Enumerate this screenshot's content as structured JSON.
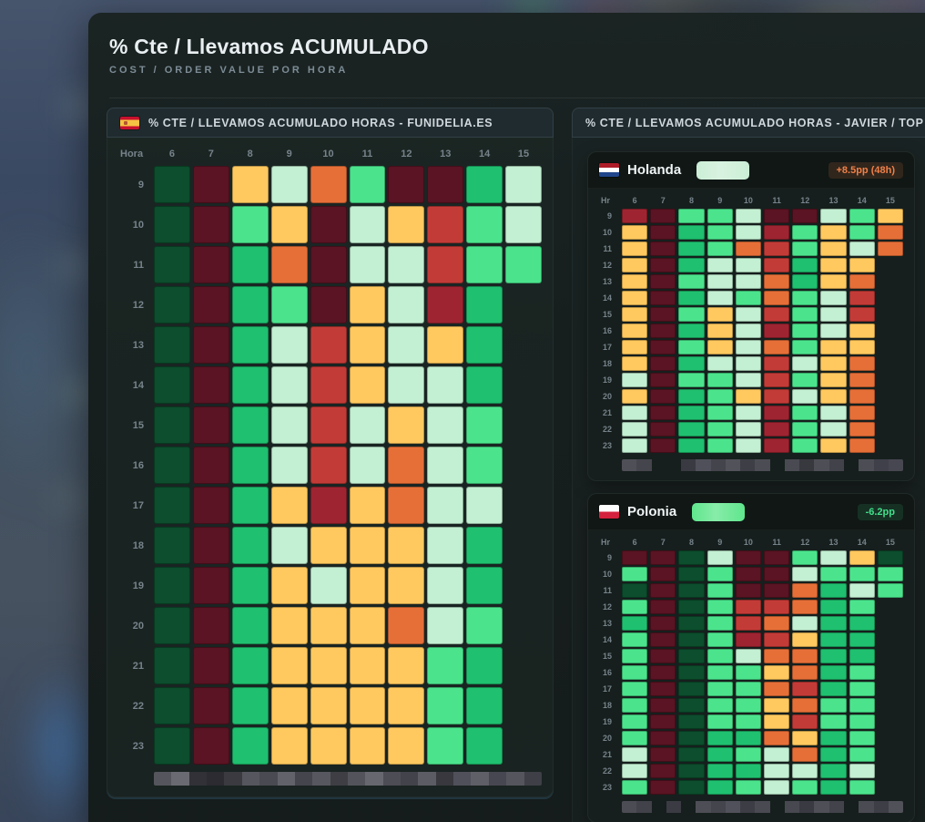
{
  "page": {
    "title": "% Cte / Llevamos ACUMULADO",
    "subtitle": "COST / ORDER VALUE POR HORA"
  },
  "palette": {
    "dg": "#0c4e2d",
    "mr": "#5a1423",
    "tg": "#1fc06f",
    "mg": "#4be48d",
    "pm": "#c3efd2",
    "am": "#ffc95f",
    "or": "#e66f38",
    "rd": "#c33b37",
    "cr": "#9e2431"
  },
  "palette_legend": {
    "dg": "dark-green (best)",
    "mr": "dark-maroon (worst)",
    "tg": "green",
    "mg": "light-green",
    "pm": "pale-mint",
    "am": "amber",
    "or": "orange",
    "rd": "red",
    "cr": "crimson"
  },
  "left_panel": {
    "title": "% CTE / LLEVAMOS ACUMULADO HORAS - FUNIDELIA.ES",
    "flag_icon": "spain-flag-icon"
  },
  "right_panel": {
    "title": "% CTE / LLEVAMOS ACUMULADO HORAS - JAVIER / TOP",
    "cards": [
      {
        "name": "Holanda",
        "flag_icon": "netherlands-flag-icon",
        "value_redacted": true,
        "pill_color": "#cbeed6",
        "badge": "+8.5pp (48h)",
        "badge_color": "#f08048",
        "badge_bg": "rgba(240,128,72,0.15)"
      },
      {
        "name": "Polonia",
        "flag_icon": "poland-flag-icon",
        "value_redacted": true,
        "pill_color": "#5fe68c",
        "badge": "-6.2pp",
        "badge_color": "#43df8b",
        "badge_bg": "rgba(67,223,139,0.13)"
      }
    ]
  },
  "chart_data": [
    {
      "type": "heatmap",
      "title": "% CTE / LLEVAMOS ACUMULADO HORAS - FUNIDELIA.ES",
      "corner": "Hora",
      "x": [
        "6",
        "7",
        "8",
        "9",
        "10",
        "11",
        "12",
        "13",
        "14",
        "15"
      ],
      "y": [
        "9",
        "10",
        "11",
        "12",
        "13",
        "14",
        "15",
        "16",
        "17",
        "18",
        "19",
        "20",
        "21",
        "22",
        "23"
      ],
      "values_note": "cells encode % cost/order value by color class only; no numeric labels shown",
      "cells": [
        [
          "dg",
          "mr",
          "am",
          "pm",
          "or",
          "mg",
          "mr",
          "mr",
          "tg",
          "pm"
        ],
        [
          "dg",
          "mr",
          "mg",
          "am",
          "mr",
          "pm",
          "am",
          "rd",
          "mg",
          "pm"
        ],
        [
          "dg",
          "mr",
          "tg",
          "or",
          "mr",
          "pm",
          "pm",
          "rd",
          "mg",
          "mg"
        ],
        [
          "dg",
          "mr",
          "tg",
          "mg",
          "mr",
          "am",
          "pm",
          "cr",
          "tg"
        ],
        [
          "dg",
          "mr",
          "tg",
          "pm",
          "rd",
          "am",
          "pm",
          "am",
          "tg"
        ],
        [
          "dg",
          "mr",
          "tg",
          "pm",
          "rd",
          "am",
          "pm",
          "pm",
          "tg"
        ],
        [
          "dg",
          "mr",
          "tg",
          "pm",
          "rd",
          "pm",
          "am",
          "pm",
          "mg"
        ],
        [
          "dg",
          "mr",
          "tg",
          "pm",
          "rd",
          "pm",
          "or",
          "pm",
          "mg"
        ],
        [
          "dg",
          "mr",
          "tg",
          "am",
          "cr",
          "am",
          "or",
          "pm",
          "pm"
        ],
        [
          "dg",
          "mr",
          "tg",
          "pm",
          "am",
          "am",
          "am",
          "pm",
          "tg"
        ],
        [
          "dg",
          "mr",
          "tg",
          "am",
          "pm",
          "am",
          "am",
          "pm",
          "tg"
        ],
        [
          "dg",
          "mr",
          "tg",
          "am",
          "am",
          "am",
          "or",
          "pm",
          "mg"
        ],
        [
          "dg",
          "mr",
          "tg",
          "am",
          "am",
          "am",
          "am",
          "mg",
          "tg"
        ],
        [
          "dg",
          "mr",
          "tg",
          "am",
          "am",
          "am",
          "am",
          "mg",
          "tg"
        ],
        [
          "dg",
          "mr",
          "tg",
          "am",
          "am",
          "am",
          "am",
          "mg",
          "tg"
        ]
      ],
      "redaction_bar": [
        "#55555d",
        "#6a6a72",
        "#313137",
        "#2b2b31",
        "#3a3a40",
        "#56565e",
        "#4a4a52",
        "#62626a",
        "#45454d",
        "#57575f",
        "#3e3e44",
        "#53535b",
        "#67676f",
        "#4d4d55",
        "#43434b",
        "#5c5c64",
        "#38383e",
        "#50505a",
        "#5f5f67",
        "#474751",
        "#55555d",
        "#3f3f47"
      ]
    },
    {
      "type": "heatmap",
      "title": "Holanda",
      "corner": "Hr",
      "x": [
        "6",
        "7",
        "8",
        "9",
        "10",
        "11",
        "12",
        "13",
        "14",
        "15"
      ],
      "y": [
        "9",
        "10",
        "11",
        "12",
        "13",
        "14",
        "15",
        "16",
        "17",
        "18",
        "19",
        "20",
        "21",
        "22",
        "23"
      ],
      "values_note": "cells encode % cost/order value by color class only; no numeric labels shown",
      "cells": [
        [
          "cr",
          "mr",
          "mg",
          "mg",
          "pm",
          "mr",
          "mr",
          "pm",
          "mg",
          "am"
        ],
        [
          "am",
          "mr",
          "tg",
          "mg",
          "pm",
          "cr",
          "mg",
          "am",
          "mg",
          "or"
        ],
        [
          "am",
          "mr",
          "tg",
          "mg",
          "or",
          "rd",
          "mg",
          "am",
          "pm",
          "or"
        ],
        [
          "am",
          "mr",
          "tg",
          "pm",
          "pm",
          "rd",
          "tg",
          "am",
          "am"
        ],
        [
          "am",
          "mr",
          "mg",
          "pm",
          "pm",
          "or",
          "tg",
          "am",
          "or"
        ],
        [
          "am",
          "mr",
          "tg",
          "pm",
          "mg",
          "or",
          "mg",
          "pm",
          "rd"
        ],
        [
          "am",
          "mr",
          "mg",
          "am",
          "pm",
          "rd",
          "mg",
          "pm",
          "rd"
        ],
        [
          "am",
          "mr",
          "tg",
          "am",
          "pm",
          "cr",
          "mg",
          "pm",
          "am"
        ],
        [
          "am",
          "mr",
          "mg",
          "am",
          "pm",
          "or",
          "mg",
          "am",
          "am"
        ],
        [
          "am",
          "mr",
          "tg",
          "pm",
          "pm",
          "rd",
          "pm",
          "am",
          "or"
        ],
        [
          "pm",
          "mr",
          "mg",
          "mg",
          "pm",
          "rd",
          "mg",
          "am",
          "or"
        ],
        [
          "am",
          "mr",
          "tg",
          "mg",
          "am",
          "rd",
          "pm",
          "am",
          "or"
        ],
        [
          "pm",
          "mr",
          "tg",
          "mg",
          "pm",
          "cr",
          "mg",
          "pm",
          "or"
        ],
        [
          "pm",
          "mr",
          "tg",
          "mg",
          "pm",
          "cr",
          "mg",
          "pm",
          "or"
        ],
        [
          "pm",
          "mr",
          "tg",
          "mg",
          "pm",
          "cr",
          "mg",
          "am",
          "or"
        ]
      ],
      "redaction_bar": [
        "#4f4f57",
        "#45454d",
        null,
        null,
        "#3a3a42",
        "#50505a",
        "#44444c",
        "#52525a",
        "#3e3e46",
        "#4c4c54",
        null,
        "#4a4a52",
        "#38383f",
        "#4e4e56",
        "#42424a",
        null,
        "#4d4d55",
        "#40404a",
        "#474751"
      ]
    },
    {
      "type": "heatmap",
      "title": "Polonia",
      "corner": "Hr",
      "x": [
        "6",
        "7",
        "8",
        "9",
        "10",
        "11",
        "12",
        "13",
        "14",
        "15"
      ],
      "y": [
        "9",
        "10",
        "11",
        "12",
        "13",
        "14",
        "15",
        "16",
        "17",
        "18",
        "19",
        "20",
        "21",
        "22",
        "23"
      ],
      "values_note": "cells encode % cost/order value by color class only; no numeric labels shown",
      "cells": [
        [
          "mr",
          "mr",
          "dg",
          "pm",
          "mr",
          "mr",
          "mg",
          "pm",
          "am",
          "dg"
        ],
        [
          "mg",
          "mr",
          "dg",
          "mg",
          "mr",
          "mr",
          "pm",
          "mg",
          "mg",
          "mg"
        ],
        [
          "dg",
          "mr",
          "dg",
          "mg",
          "mr",
          "mr",
          "or",
          "tg",
          "pm",
          "mg"
        ],
        [
          "mg",
          "mr",
          "dg",
          "mg",
          "rd",
          "rd",
          "or",
          "tg",
          "mg"
        ],
        [
          "tg",
          "mr",
          "dg",
          "mg",
          "rd",
          "or",
          "pm",
          "tg",
          "tg"
        ],
        [
          "mg",
          "mr",
          "dg",
          "mg",
          "cr",
          "rd",
          "am",
          "tg",
          "tg"
        ],
        [
          "mg",
          "mr",
          "dg",
          "mg",
          "pm",
          "or",
          "or",
          "tg",
          "tg"
        ],
        [
          "mg",
          "mr",
          "dg",
          "mg",
          "mg",
          "am",
          "or",
          "tg",
          "mg"
        ],
        [
          "mg",
          "mr",
          "dg",
          "mg",
          "mg",
          "or",
          "rd",
          "tg",
          "mg"
        ],
        [
          "mg",
          "mr",
          "dg",
          "mg",
          "mg",
          "am",
          "or",
          "mg",
          "mg"
        ],
        [
          "mg",
          "mr",
          "dg",
          "mg",
          "mg",
          "am",
          "rd",
          "mg",
          "mg"
        ],
        [
          "mg",
          "mr",
          "dg",
          "tg",
          "tg",
          "or",
          "am",
          "tg",
          "mg"
        ],
        [
          "pm",
          "mr",
          "dg",
          "tg",
          "mg",
          "pm",
          "or",
          "tg",
          "mg"
        ],
        [
          "pm",
          "mr",
          "dg",
          "tg",
          "tg",
          "pm",
          "pm",
          "tg",
          "pm"
        ],
        [
          "mg",
          "mr",
          "dg",
          "tg",
          "mg",
          "pm",
          "mg",
          "tg",
          "mg"
        ]
      ],
      "redaction_bar": [
        "#4c4c54",
        "#42424a",
        null,
        "#3b3b43",
        null,
        "#4e4e56",
        "#45454d",
        "#51515b",
        "#3d3d45",
        "#4a4a52",
        null,
        "#484850",
        "#3a3a42",
        "#4f4f57",
        "#43434b",
        null,
        "#4b4b53",
        "#3e3e46",
        "#515159"
      ]
    }
  ]
}
